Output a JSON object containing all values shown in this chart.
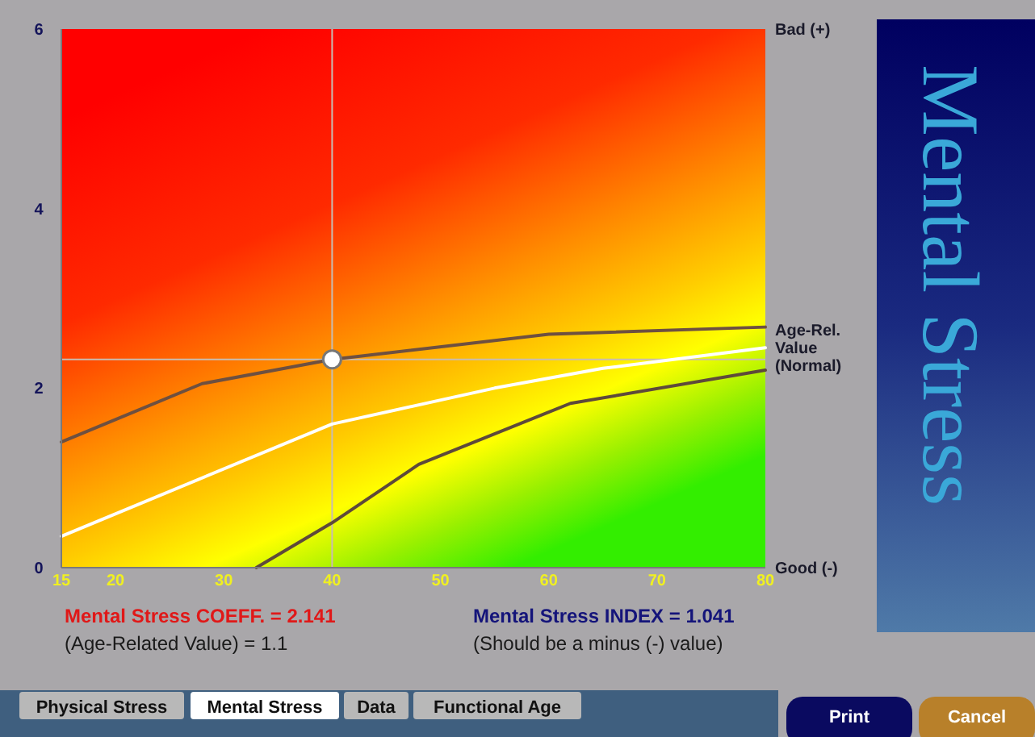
{
  "chart_data": {
    "type": "line",
    "title": "Mental Stress",
    "xlim": [
      15,
      80
    ],
    "xticks": [
      15,
      20,
      30,
      40,
      50,
      60,
      70,
      80
    ],
    "ylim": [
      0,
      6
    ],
    "yticks": [
      0,
      2,
      4,
      6
    ],
    "grid": false,
    "marker": "none",
    "line_style": "solid",
    "series": [
      {
        "color": "#6e5040",
        "x": [
          15,
          28,
          40,
          60,
          80
        ],
        "values": [
          1.4,
          2.05,
          2.32,
          2.6,
          2.68
        ]
      },
      {
        "color": "#ffffff",
        "x": [
          15,
          40,
          55,
          65,
          80
        ],
        "values": [
          0.35,
          1.6,
          2.0,
          2.22,
          2.45
        ]
      },
      {
        "color": "#5e4a3a",
        "x": [
          33,
          40,
          48,
          62,
          80
        ],
        "values": [
          0,
          0.5,
          1.15,
          1.83,
          2.2
        ]
      },
      {
        "type": "scatter",
        "marker": "circle",
        "color": "#ffffff",
        "x": [
          40
        ],
        "values": [
          2.32
        ]
      }
    ],
    "ref_lines": [
      {
        "axis": "x",
        "value": 40,
        "color": "#c8bcb0"
      },
      {
        "axis": "y",
        "value": 2.32,
        "color": "#c8bcb0"
      }
    ],
    "annotations": [
      "Bad (+)",
      {
        "text": "Age-Rel. Value (Normal)",
        "x": 80,
        "y": 2.45
      },
      "Good (-)",
      "Mental Stress COEFF. = 2.141",
      "(Age-Related Value) = 1.1",
      "Mental Stress INDEX = 1.041",
      "(Should be a minus (-) value)",
      "Physical Stress",
      "Mental Stress",
      "Data",
      "Functional Age",
      "Print",
      "Cancel"
    ]
  }
}
